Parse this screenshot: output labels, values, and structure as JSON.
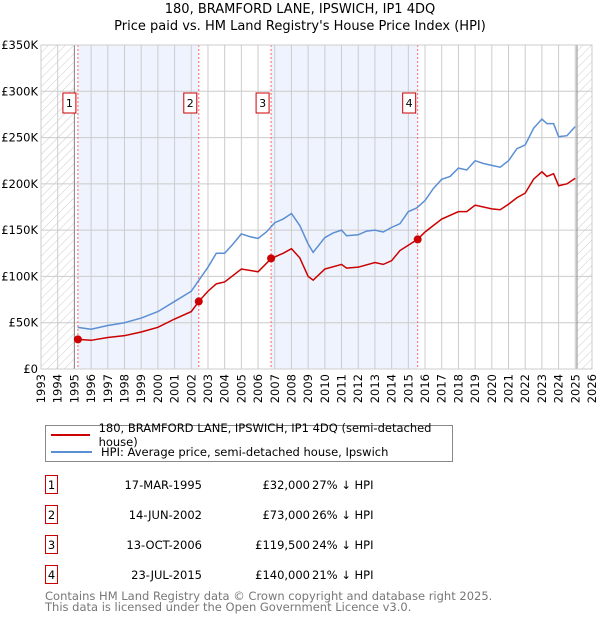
{
  "title_line1": "180, BRAMFORD LANE, IPSWICH, IP1 4DQ",
  "title_line2": "Price paid vs. HM Land Registry's House Price Index (HPI)",
  "chart_data": {
    "type": "line",
    "title": "180, BRAMFORD LANE, IPSWICH, IP1 4DQ — Price paid vs. HM Land Registry's House Price Index (HPI)",
    "xlim": [
      1993,
      2026
    ],
    "ylim": [
      0,
      350000
    ],
    "y_ticks": [
      0,
      50000,
      100000,
      150000,
      200000,
      250000,
      300000,
      350000
    ],
    "y_tick_labels": [
      "£0",
      "£50K",
      "£100K",
      "£150K",
      "£200K",
      "£250K",
      "£300K",
      "£350K"
    ],
    "x_ticks": [
      "1993",
      "1994",
      "1995",
      "1996",
      "1997",
      "1998",
      "1999",
      "2000",
      "2001",
      "2002",
      "2003",
      "2004",
      "2005",
      "2006",
      "2007",
      "2008",
      "2009",
      "2010",
      "2011",
      "2012",
      "2013",
      "2014",
      "2015",
      "2016",
      "2017",
      "2018",
      "2019",
      "2020",
      "2021",
      "2022",
      "2023",
      "2024",
      "2025",
      "2026"
    ],
    "grid": true,
    "colors": {
      "property": "#cc0000",
      "hpi": "#5b8fd4",
      "shade": "#eef3fd",
      "marker_line": "#ff6666"
    },
    "series": [
      {
        "name": "180, BRAMFORD LANE, IPSWICH, IP1 4DQ (semi-detached house)",
        "x": [
          1995.2,
          1996,
          1997,
          1998,
          1999,
          2000,
          2001,
          2002,
          2002.45,
          2003,
          2003.5,
          2004,
          2005,
          2006,
          2006.8,
          2007.5,
          2008,
          2008.5,
          2009,
          2009.3,
          2010,
          2011,
          2011.3,
          2012,
          2013,
          2013.5,
          2014,
          2014.5,
          2015.55,
          2016,
          2016.5,
          2017,
          2018,
          2018.5,
          2019,
          2020,
          2020.5,
          2021,
          2021.5,
          2022,
          2022.5,
          2023,
          2023.3,
          2023.7,
          2024,
          2024.5,
          2025
        ],
        "y": [
          32000,
          31000,
          34000,
          36000,
          40000,
          45000,
          54000,
          62000,
          73000,
          84000,
          92000,
          94000,
          108000,
          105000,
          119500,
          125000,
          130000,
          120000,
          100000,
          96000,
          108000,
          113000,
          109000,
          110000,
          115000,
          113000,
          117000,
          128000,
          140000,
          148000,
          155000,
          162000,
          170000,
          170000,
          177000,
          173000,
          172000,
          178000,
          185000,
          190000,
          205000,
          213000,
          208000,
          211000,
          198000,
          200000,
          206000
        ]
      },
      {
        "name": "HPI: Average price, semi-detached house, Ipswich",
        "x": [
          1995.2,
          1996,
          1997,
          1998,
          1999,
          2000,
          2001,
          2002,
          2002.5,
          2003,
          2003.5,
          2004,
          2004.5,
          2005,
          2005.5,
          2006,
          2006.5,
          2007,
          2007.5,
          2008,
          2008.5,
          2009,
          2009.3,
          2010,
          2010.5,
          2011,
          2011.3,
          2012,
          2012.5,
          2013,
          2013.5,
          2014,
          2014.5,
          2015,
          2015.5,
          2016,
          2016.5,
          2017,
          2017.5,
          2018,
          2018.5,
          2019,
          2019.5,
          2020,
          2020.5,
          2021,
          2021.5,
          2022,
          2022.5,
          2023,
          2023.3,
          2023.7,
          2024,
          2024.5,
          2025
        ],
        "y": [
          45000,
          43000,
          47000,
          50000,
          55000,
          62000,
          73000,
          84000,
          97000,
          110000,
          125000,
          125000,
          135000,
          146000,
          143000,
          141000,
          148000,
          158000,
          162000,
          168000,
          155000,
          135000,
          126000,
          142000,
          147000,
          150000,
          144000,
          145000,
          149000,
          150000,
          148000,
          153000,
          157000,
          170000,
          174000,
          182000,
          195000,
          205000,
          208000,
          217000,
          215000,
          225000,
          222000,
          220000,
          218000,
          225000,
          238000,
          242000,
          260000,
          270000,
          265000,
          265000,
          251000,
          252000,
          262000
        ]
      }
    ],
    "sales": [
      {
        "label": "1",
        "x": 1995.21,
        "price": 32000
      },
      {
        "label": "2",
        "x": 2002.45,
        "price": 73000
      },
      {
        "label": "3",
        "x": 2006.78,
        "price": 119500
      },
      {
        "label": "4",
        "x": 2015.56,
        "price": 140000
      }
    ],
    "legend_placement": "below"
  },
  "legend": {
    "property": "180, BRAMFORD LANE, IPSWICH, IP1 4DQ (semi-detached house)",
    "hpi": "HPI: Average price, semi-detached house, Ipswich"
  },
  "transactions": [
    {
      "num": "1",
      "date": "17-MAR-1995",
      "price": "£32,000",
      "hpi": "27% ↓ HPI"
    },
    {
      "num": "2",
      "date": "14-JUN-2002",
      "price": "£73,000",
      "hpi": "26% ↓ HPI"
    },
    {
      "num": "3",
      "date": "13-OCT-2006",
      "price": "£119,500",
      "hpi": "24% ↓ HPI"
    },
    {
      "num": "4",
      "date": "23-JUL-2015",
      "price": "£140,000",
      "hpi": "21% ↓ HPI"
    }
  ],
  "footer": {
    "line1": "Contains HM Land Registry data © Crown copyright and database right 2025.",
    "line2": "This data is licensed under the Open Government Licence v3.0."
  }
}
